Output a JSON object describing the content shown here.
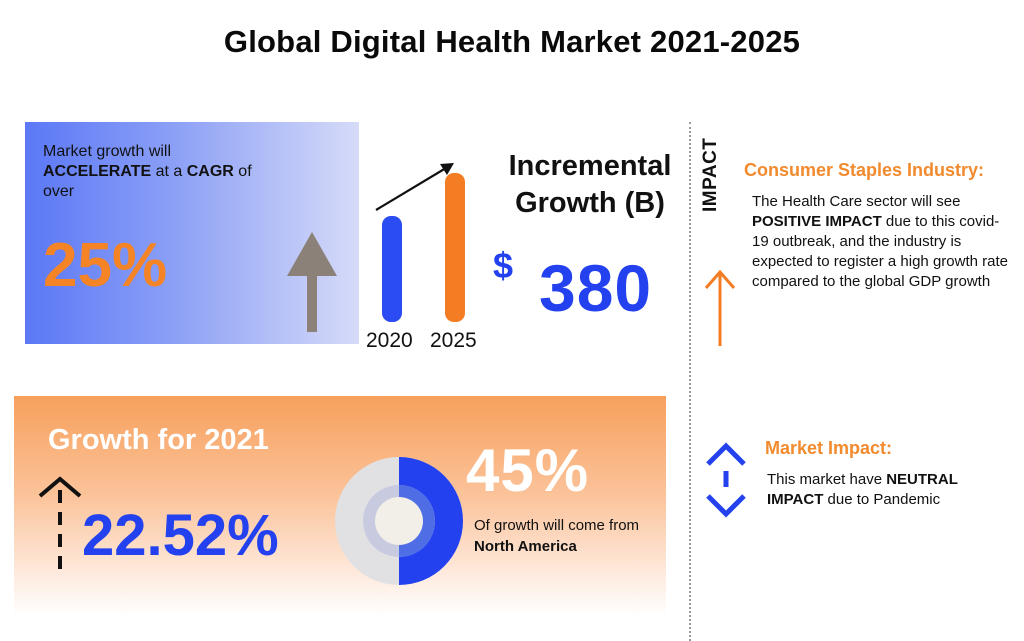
{
  "title": "Global Digital Health Market 2021-2025",
  "cagr_card": {
    "text_1": "Market growth will",
    "text_bold_1": "ACCELERATE",
    "text_2": " at a ",
    "text_bold_2": "CAGR",
    "text_3": " of over",
    "value": "25%",
    "arrow_icon": "up-arrow-icon"
  },
  "bars": {
    "years": [
      "2020",
      "2025"
    ],
    "relative_heights": [
      0.71,
      1.0
    ],
    "colors": [
      "#2b4cf2",
      "#f47c22"
    ]
  },
  "incremental": {
    "title_line_1": "Incremental",
    "title_line_2": "Growth (B)",
    "currency": "$",
    "value": "380"
  },
  "impact": {
    "label": "IMPACT",
    "arrow_icon": "up-arrow-icon",
    "csi_title": "Consumer Staples Industry:",
    "csi_text_1": "The Health Care sector will see ",
    "csi_bold": "POSITIVE IMPACT",
    "csi_text_2": " due to this covid-19 outbreak, and the industry is expected to register a high growth rate compared to the global GDP growth",
    "mi_icon": "up-down-arrows-icon",
    "mi_title": "Market Impact:",
    "mi_text_1": "This market have ",
    "mi_bold": "NEUTRAL IMPACT",
    "mi_text_2": " due to Pandemic"
  },
  "growth_card": {
    "title": "Growth for 2021",
    "value": "22.52%",
    "share_pct": "45%",
    "share_fraction": 0.45,
    "share_text": "Of growth will come from",
    "share_region": "North America"
  },
  "colors": {
    "blue": "#2341ee",
    "orange": "#f47c22",
    "orange_title": "#f28a2e"
  }
}
